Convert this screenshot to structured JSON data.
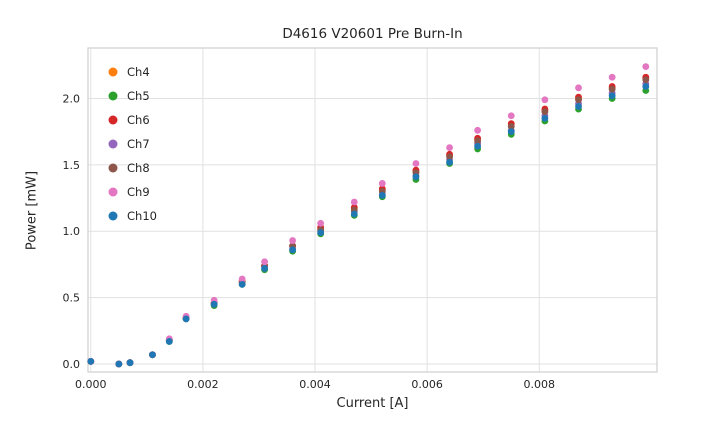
{
  "figure": {
    "background": "#ffffff",
    "grid_color": "#e1e1e1",
    "border_color": "#cfcfcf"
  },
  "chart_data": {
    "type": "scatter",
    "title": "D4616 V20601 Pre Burn-In",
    "xlabel": "Current [A]",
    "ylabel": "Power [mW]",
    "xlim": [
      -5e-05,
      0.0101
    ],
    "ylim": [
      -0.06,
      2.38
    ],
    "xticks": [
      0.0,
      0.002,
      0.004,
      0.006,
      0.008
    ],
    "xtick_labels": [
      "0.000",
      "0.002",
      "0.004",
      "0.006",
      "0.008"
    ],
    "yticks": [
      0.0,
      0.5,
      1.0,
      1.5,
      2.0
    ],
    "ytick_labels": [
      "0.0",
      "0.5",
      "1.0",
      "1.5",
      "2.0"
    ],
    "grid": true,
    "legend_position": "upper-left",
    "x": [
      0.0,
      0.0005,
      0.0007,
      0.0011,
      0.0014,
      0.0017,
      0.0022,
      0.0027,
      0.0031,
      0.0036,
      0.0041,
      0.0047,
      0.0052,
      0.0058,
      0.0064,
      0.0069,
      0.0075,
      0.0081,
      0.0087,
      0.0093,
      0.0099
    ],
    "series": [
      {
        "name": "Ch4",
        "color": "#ff7f0e",
        "values": [
          0.02,
          0.0,
          0.01,
          0.07,
          0.18,
          0.35,
          0.46,
          0.62,
          0.74,
          0.89,
          1.02,
          1.17,
          1.31,
          1.45,
          1.57,
          1.69,
          1.8,
          1.91,
          2.0,
          2.08,
          2.15
        ]
      },
      {
        "name": "Ch5",
        "color": "#2ca02c",
        "values": [
          0.02,
          0.0,
          0.01,
          0.07,
          0.17,
          0.34,
          0.44,
          0.6,
          0.71,
          0.85,
          0.98,
          1.12,
          1.26,
          1.39,
          1.51,
          1.62,
          1.73,
          1.83,
          1.92,
          2.0,
          2.06
        ]
      },
      {
        "name": "Ch6",
        "color": "#d62728",
        "values": [
          0.02,
          0.0,
          0.01,
          0.07,
          0.18,
          0.35,
          0.46,
          0.62,
          0.74,
          0.89,
          1.03,
          1.18,
          1.32,
          1.46,
          1.58,
          1.7,
          1.81,
          1.92,
          2.01,
          2.09,
          2.16
        ]
      },
      {
        "name": "Ch7",
        "color": "#9467bd",
        "values": [
          0.02,
          0.0,
          0.01,
          0.07,
          0.18,
          0.34,
          0.45,
          0.61,
          0.73,
          0.87,
          1.0,
          1.15,
          1.28,
          1.42,
          1.54,
          1.66,
          1.76,
          1.87,
          1.96,
          2.04,
          2.11
        ]
      },
      {
        "name": "Ch8",
        "color": "#8c564b",
        "values": [
          0.02,
          0.0,
          0.01,
          0.07,
          0.18,
          0.35,
          0.46,
          0.62,
          0.74,
          0.89,
          1.01,
          1.16,
          1.3,
          1.44,
          1.56,
          1.68,
          1.79,
          1.9,
          1.99,
          2.07,
          2.14
        ]
      },
      {
        "name": "Ch9",
        "color": "#e377c2",
        "values": [
          0.02,
          0.0,
          0.01,
          0.07,
          0.19,
          0.36,
          0.48,
          0.64,
          0.77,
          0.93,
          1.06,
          1.22,
          1.36,
          1.51,
          1.63,
          1.76,
          1.87,
          1.99,
          2.08,
          2.16,
          2.24
        ]
      },
      {
        "name": "Ch10",
        "color": "#1f77b4",
        "values": [
          0.02,
          0.0,
          0.01,
          0.07,
          0.17,
          0.34,
          0.45,
          0.6,
          0.72,
          0.86,
          0.99,
          1.13,
          1.27,
          1.41,
          1.52,
          1.64,
          1.75,
          1.85,
          1.94,
          2.02,
          2.09
        ]
      }
    ]
  }
}
